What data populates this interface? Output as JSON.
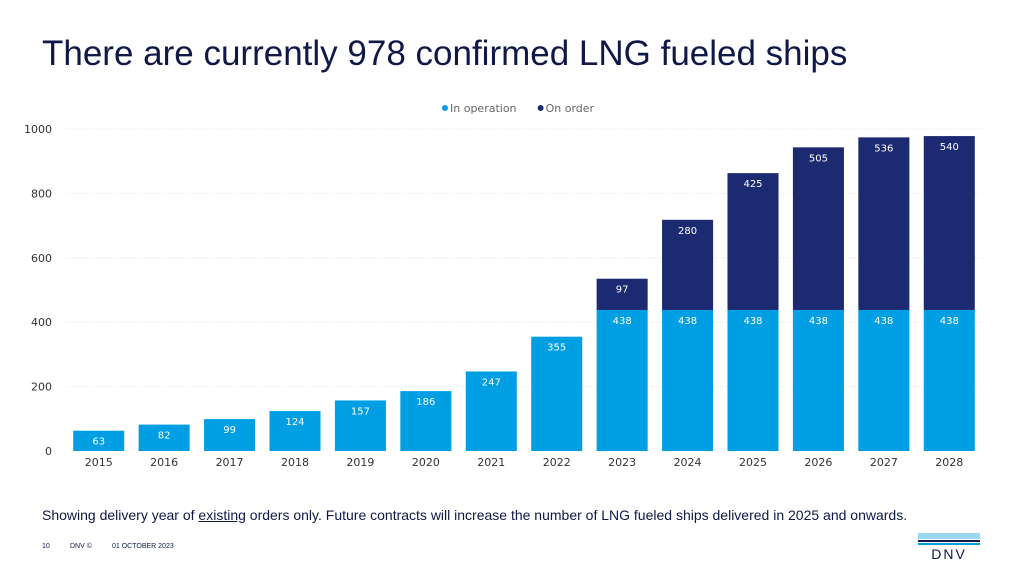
{
  "slide": {
    "title": "There are currently 978 confirmed LNG fueled ships",
    "footnote_before": "Showing delivery year of ",
    "footnote_underlined": "existing",
    "footnote_after": " orders only. Future contracts will increase the number of LNG fueled ships delivered in 2025 and onwards.",
    "page_number": "10",
    "copyright": "DNV ©",
    "date": "01 OCTOBER 2023",
    "logo_text": "DNV"
  },
  "chart_data": {
    "type": "bar",
    "stacked": true,
    "categories": [
      "2015",
      "2016",
      "2017",
      "2018",
      "2019",
      "2020",
      "2021",
      "2022",
      "2023",
      "2024",
      "2025",
      "2026",
      "2027",
      "2028"
    ],
    "series": [
      {
        "name": "In operation",
        "color": "#009fe3",
        "values": [
          63,
          82,
          99,
          124,
          157,
          186,
          247,
          355,
          438,
          438,
          438,
          438,
          438,
          438
        ]
      },
      {
        "name": "On order",
        "color": "#1c2a72",
        "values": [
          null,
          null,
          null,
          null,
          null,
          null,
          null,
          null,
          97,
          280,
          425,
          505,
          536,
          540
        ]
      }
    ],
    "ylim": [
      0,
      1000
    ],
    "yticks": [
      0,
      200,
      400,
      600,
      800,
      1000
    ],
    "grid": true,
    "legend_position": "top-center",
    "data_labels": true
  }
}
